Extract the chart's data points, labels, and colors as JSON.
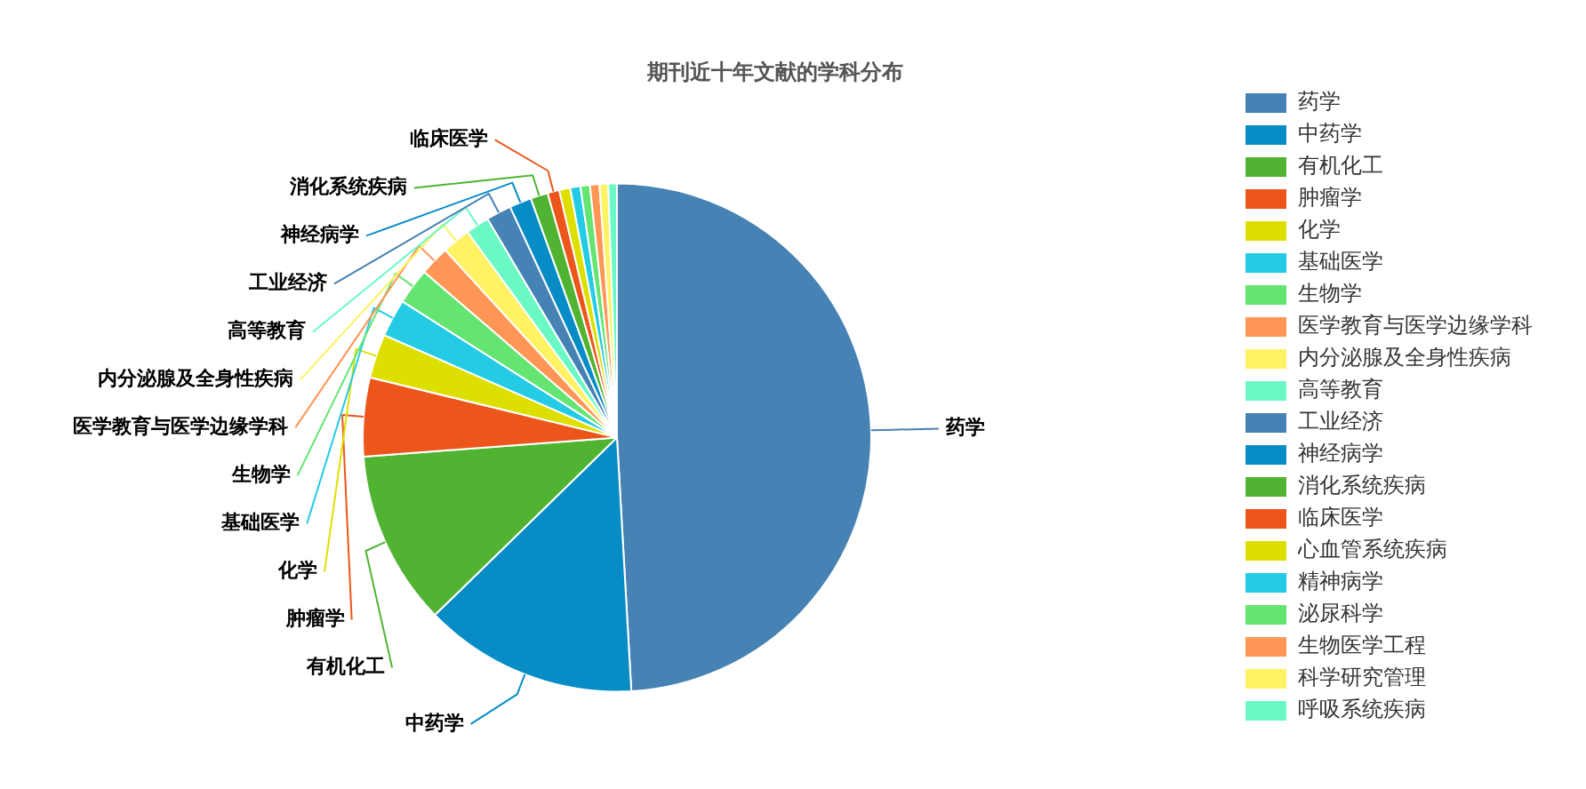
{
  "chart_data": {
    "type": "pie",
    "title": "期刊近十年文献的学科分布",
    "categories": [
      "药学",
      "中药学",
      "有机化工",
      "肿瘤学",
      "化学",
      "基础医学",
      "生物学",
      "医学教育与医学边缘学科",
      "内分泌腺及全身性疾病",
      "高等教育",
      "工业经济",
      "神经病学",
      "消化系统疾病",
      "临床医学",
      "心血管系统疾病",
      "精神病学",
      "泌尿科学",
      "生物医学工程",
      "科学研究管理",
      "呼吸系统疾病"
    ],
    "values": [
      49.1,
      13.6,
      11.1,
      5.0,
      2.8,
      2.4,
      2.3,
      1.9,
      1.8,
      1.5,
      1.6,
      1.4,
      1.1,
      0.75,
      0.7,
      0.65,
      0.6,
      0.6,
      0.55,
      0.55
    ],
    "colors": [
      "#4682b4",
      "#078cc6",
      "#50b432",
      "#ed561b",
      "#dddf00",
      "#24cbe5",
      "#64e572",
      "#ff9655",
      "#fff263",
      "#6af9c4",
      "#4682b4",
      "#078cc6",
      "#50b432",
      "#ed561b",
      "#dddf00",
      "#24cbe5",
      "#64e572",
      "#ff9655",
      "#fff263",
      "#6af9c4"
    ],
    "legend": "right"
  }
}
